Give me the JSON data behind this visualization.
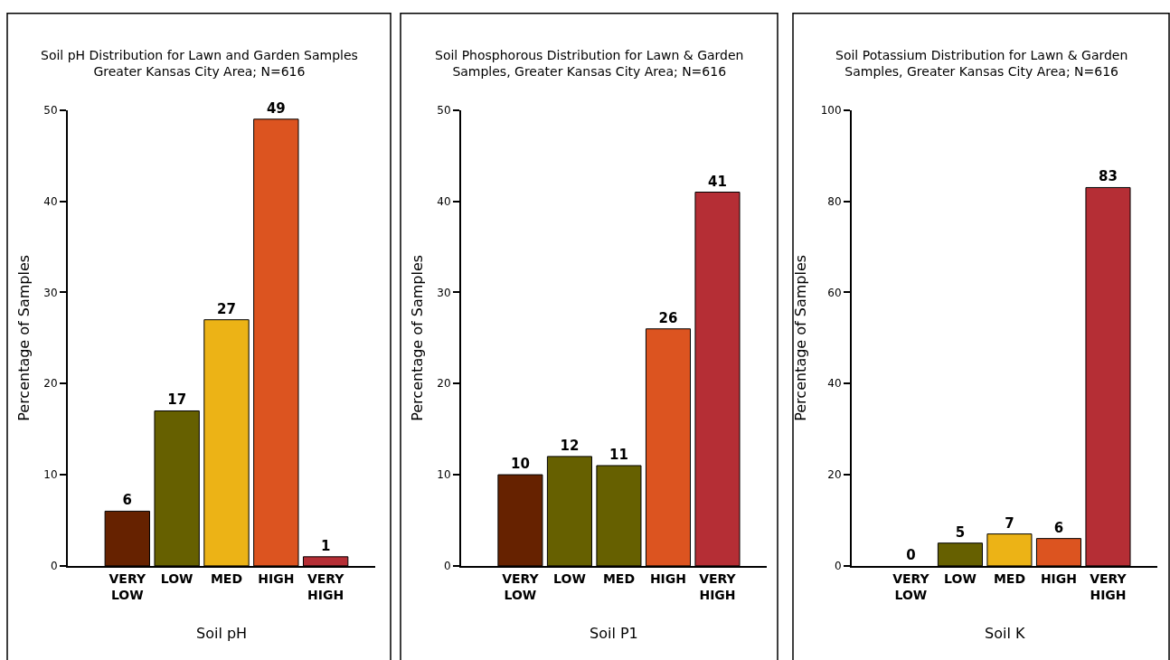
{
  "chart_data": [
    {
      "type": "bar",
      "title": "Soil pH Distribution for Lawn and Garden Samples\nGreater Kansas City Area; N=616",
      "xlabel": "Soil pH",
      "ylabel": "Percentage of Samples",
      "categories": [
        "VERY LOW",
        "LOW",
        "MED",
        "HIGH",
        "VERY HIGH"
      ],
      "values": [
        6,
        17,
        27,
        49,
        1
      ],
      "colors": [
        "#662200",
        "#666000",
        "#ecb316",
        "#dc5420",
        "#b52e35"
      ],
      "ylim": [
        0,
        50
      ],
      "yticks": [
        0,
        10,
        20,
        30,
        40,
        50
      ],
      "data_labels": true
    },
    {
      "type": "bar",
      "title": "Soil Phosphorous Distribution for Lawn & Garden\nSamples, Greater Kansas City Area; N=616",
      "xlabel": "Soil P1",
      "ylabel": "Percentage of Samples",
      "categories": [
        "VERY LOW",
        "LOW",
        "MED",
        "HIGH",
        "VERY HIGH"
      ],
      "values": [
        10,
        12,
        11,
        26,
        41
      ],
      "colors": [
        "#662200",
        "#666000",
        "#666000",
        "#dc5420",
        "#b52e35"
      ],
      "ylim": [
        0,
        50
      ],
      "yticks": [
        0,
        10,
        20,
        30,
        40,
        50
      ],
      "data_labels": true
    },
    {
      "type": "bar",
      "title": "Soil Potassium Distribution for Lawn & Garden\nSamples, Greater Kansas City Area; N=616",
      "xlabel": "Soil K",
      "ylabel": "Percentage of Samples",
      "categories": [
        "VERY LOW",
        "LOW",
        "MED",
        "HIGH",
        "VERY HIGH"
      ],
      "values": [
        0,
        5,
        7,
        6,
        83
      ],
      "colors": [
        null,
        "#666000",
        "#ecb316",
        "#dc5420",
        "#b52e35"
      ],
      "ylim": [
        0,
        100
      ],
      "yticks": [
        0,
        20,
        40,
        60,
        80,
        100
      ],
      "data_labels": true
    }
  ]
}
